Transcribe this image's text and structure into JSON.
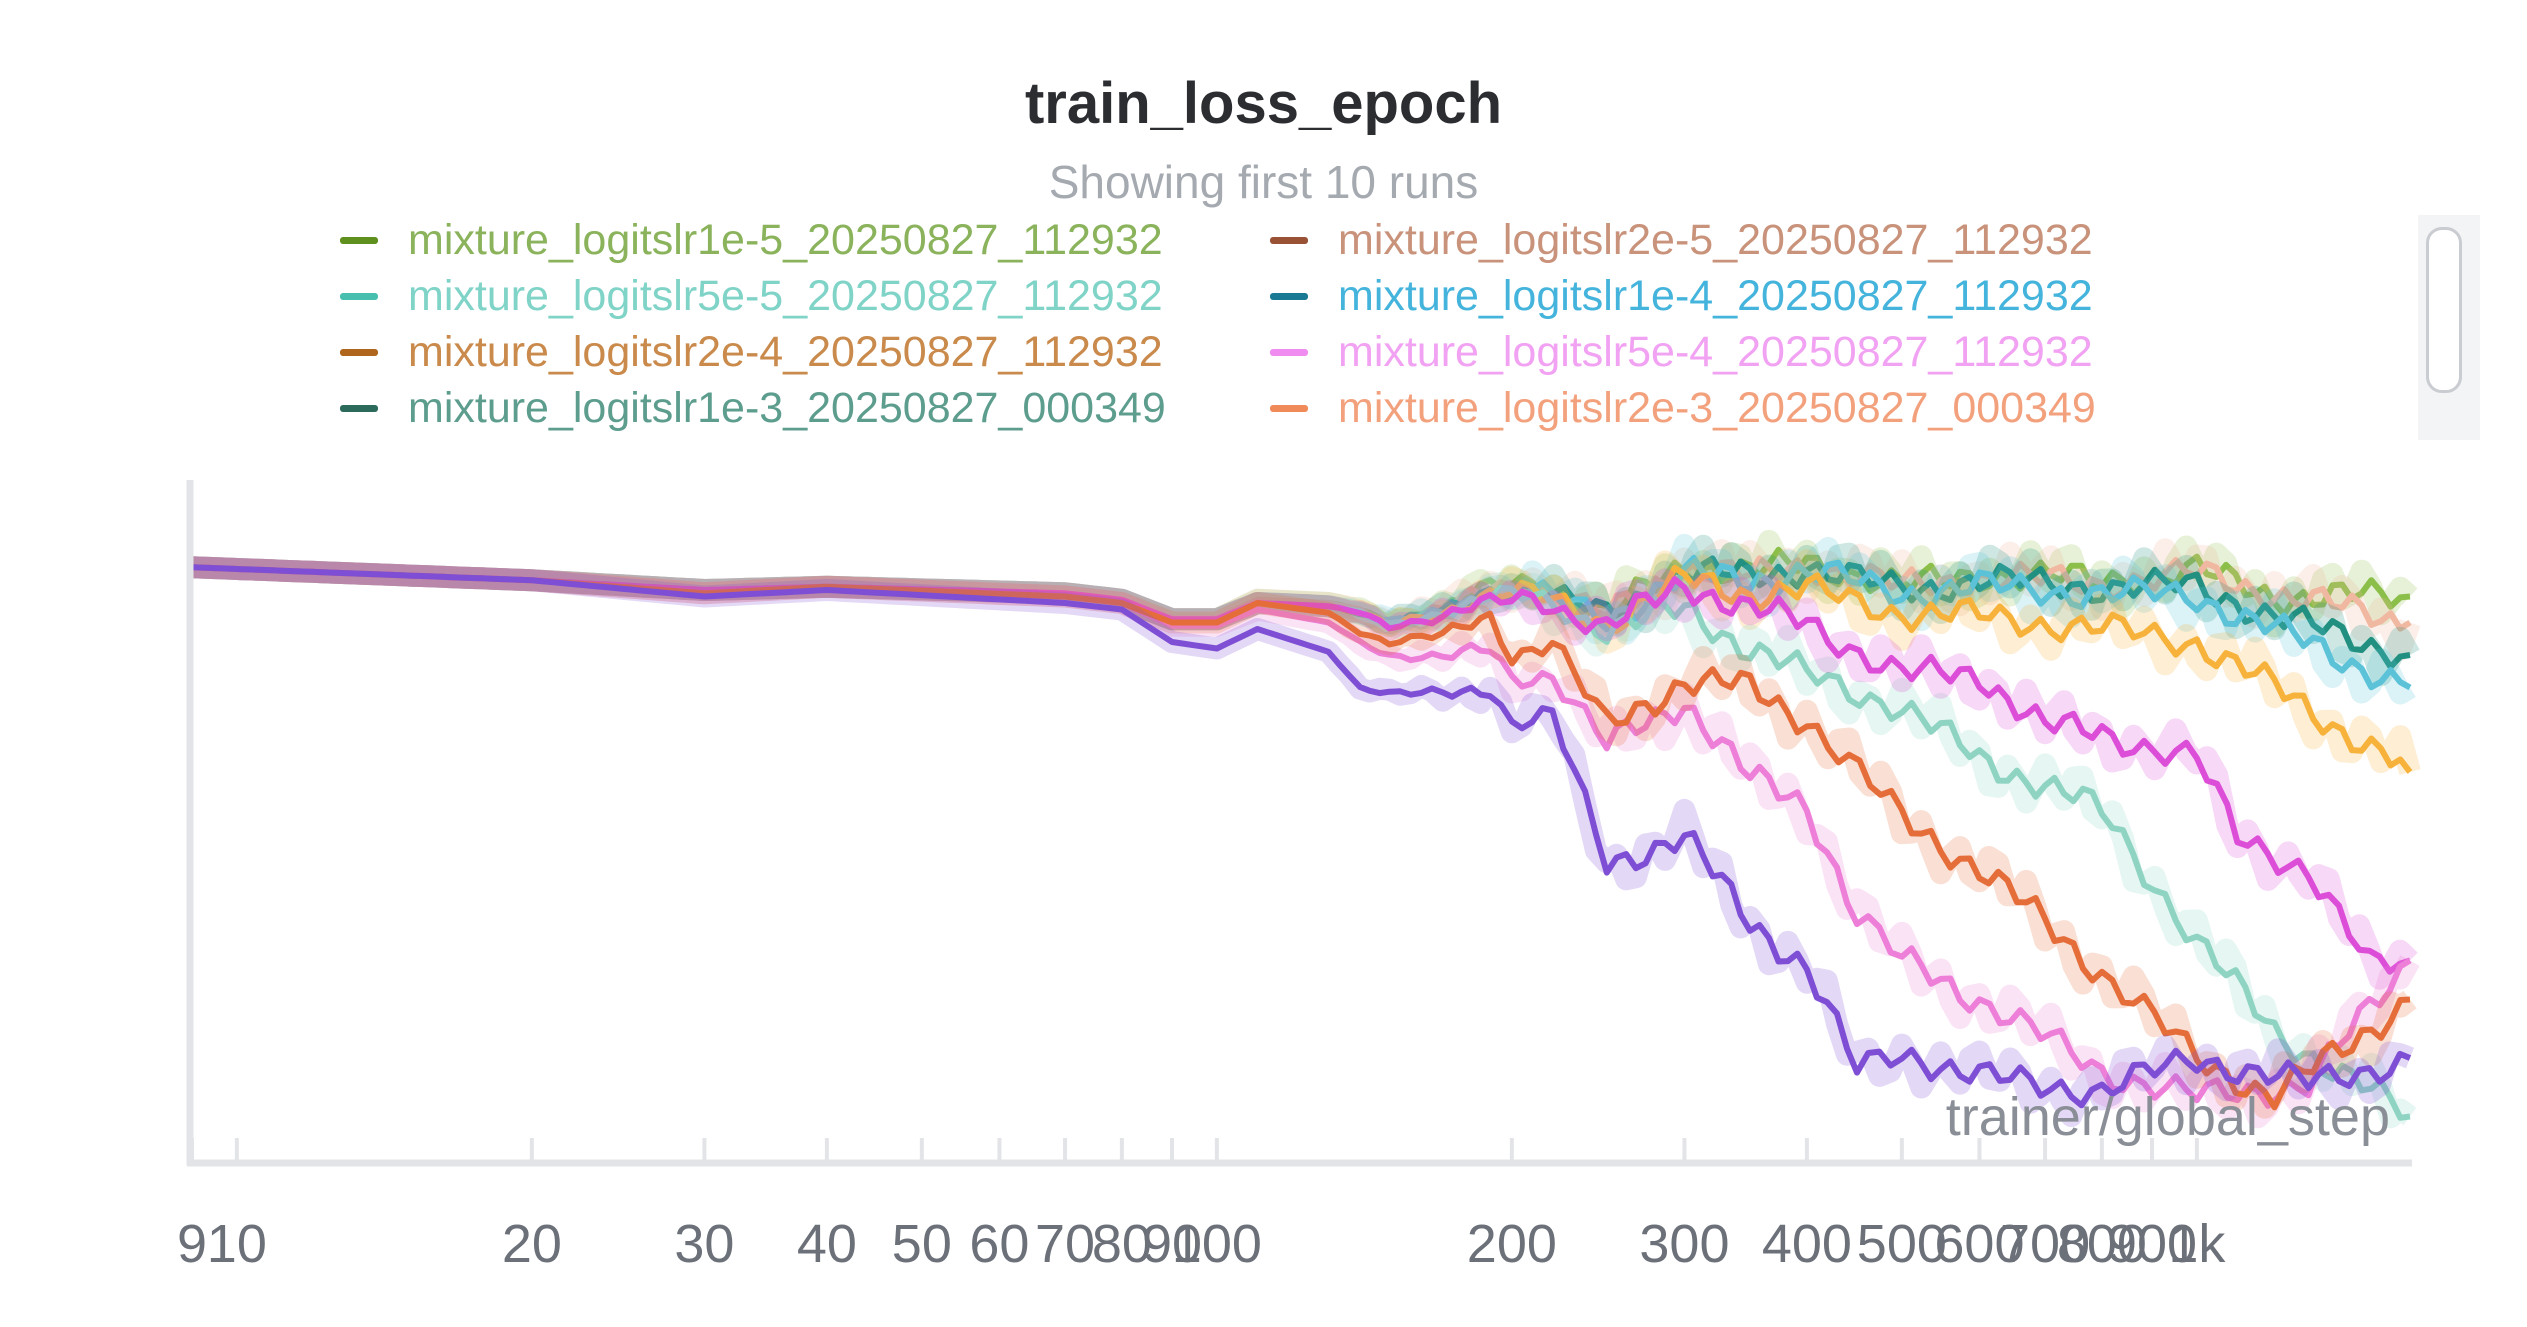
{
  "chart_data": {
    "type": "line",
    "title": "train_loss_epoch",
    "subtitle": "Showing first 10 runs",
    "xlabel": "trainer/global_step",
    "ylabel": "",
    "x_scale": "log",
    "xlim": [
      9,
      1650
    ],
    "ylim": [
      0,
      1
    ],
    "x_tick_labels": [
      "9",
      "10",
      "20",
      "30",
      "40",
      "50",
      "60",
      "70",
      "80",
      "90",
      "100",
      "200",
      "300",
      "400",
      "500",
      "600",
      "700",
      "800",
      "900",
      "1k"
    ],
    "x_tick_values": [
      9,
      10,
      20,
      30,
      40,
      50,
      60,
      70,
      80,
      90,
      100,
      200,
      300,
      400,
      500,
      600,
      700,
      800,
      900,
      1000
    ],
    "legend": [
      {
        "name": "mixture_logitslr1e-5_20250827_112932",
        "color": "#5f8f1c",
        "text_color": "#8ab35c"
      },
      {
        "name": "mixture_logitslr2e-5_20250827_112932",
        "color": "#9a5236",
        "text_color": "#c9927a"
      },
      {
        "name": "mixture_logitslr5e-5_20250827_112932",
        "color": "#47bfae",
        "text_color": "#7fd3c7"
      },
      {
        "name": "mixture_logitslr1e-4_20250827_112932",
        "color": "#1a7a94",
        "text_color": "#45b4dc"
      },
      {
        "name": "mixture_logitslr2e-4_20250827_112932",
        "color": "#b0651c",
        "text_color": "#c98a4c"
      },
      {
        "name": "mixture_logitslr5e-4_20250827_112932",
        "color": "#f08cf0",
        "text_color": "#f2a2f2"
      },
      {
        "name": "mixture_logitslr1e-3_20250827_000349",
        "color": "#2c6a5c",
        "text_color": "#5d9d8e"
      },
      {
        "name": "mixture_logitslr2e-3_20250827_000349",
        "color": "#f08a58",
        "text_color": "#f3a17d"
      }
    ],
    "series": [
      {
        "name": "mixture_logitslr1e-5_20250827_112932",
        "color": "#8bbf4a",
        "points": [
          [
            9,
            0.915
          ],
          [
            20,
            0.895
          ],
          [
            30,
            0.88
          ],
          [
            40,
            0.885
          ],
          [
            70,
            0.875
          ],
          [
            80,
            0.865
          ],
          [
            90,
            0.835
          ],
          [
            100,
            0.835
          ],
          [
            110,
            0.865
          ],
          [
            130,
            0.86
          ],
          [
            140,
            0.85
          ],
          [
            150,
            0.83
          ],
          [
            170,
            0.85
          ],
          [
            190,
            0.885
          ],
          [
            210,
            0.895
          ],
          [
            250,
            0.84
          ],
          [
            300,
            0.92
          ],
          [
            350,
            0.905
          ],
          [
            400,
            0.925
          ],
          [
            500,
            0.885
          ],
          [
            600,
            0.905
          ],
          [
            800,
            0.895
          ],
          [
            1000,
            0.91
          ],
          [
            1200,
            0.87
          ],
          [
            1650,
            0.87
          ]
        ]
      },
      {
        "name": "mixture_logitslr2e-5_20250827_112932",
        "color": "#f0b8a0",
        "points": [
          [
            9,
            0.915
          ],
          [
            20,
            0.895
          ],
          [
            30,
            0.88
          ],
          [
            40,
            0.885
          ],
          [
            70,
            0.875
          ],
          [
            80,
            0.865
          ],
          [
            90,
            0.835
          ],
          [
            100,
            0.835
          ],
          [
            110,
            0.865
          ],
          [
            130,
            0.86
          ],
          [
            140,
            0.85
          ],
          [
            150,
            0.83
          ],
          [
            170,
            0.85
          ],
          [
            190,
            0.885
          ],
          [
            210,
            0.89
          ],
          [
            250,
            0.84
          ],
          [
            300,
            0.915
          ],
          [
            350,
            0.9
          ],
          [
            400,
            0.92
          ],
          [
            500,
            0.885
          ],
          [
            600,
            0.9
          ],
          [
            800,
            0.89
          ],
          [
            1000,
            0.905
          ],
          [
            1200,
            0.875
          ],
          [
            1650,
            0.83
          ]
        ]
      },
      {
        "name": "mixture_logitslr1e-3_20250827_000349",
        "color": "#219080",
        "points": [
          [
            9,
            0.915
          ],
          [
            20,
            0.895
          ],
          [
            30,
            0.88
          ],
          [
            40,
            0.885
          ],
          [
            70,
            0.875
          ],
          [
            80,
            0.865
          ],
          [
            90,
            0.835
          ],
          [
            100,
            0.835
          ],
          [
            110,
            0.86
          ],
          [
            130,
            0.855
          ],
          [
            140,
            0.845
          ],
          [
            150,
            0.83
          ],
          [
            170,
            0.845
          ],
          [
            190,
            0.88
          ],
          [
            210,
            0.885
          ],
          [
            250,
            0.84
          ],
          [
            300,
            0.91
          ],
          [
            350,
            0.9
          ],
          [
            400,
            0.915
          ],
          [
            500,
            0.88
          ],
          [
            600,
            0.895
          ],
          [
            800,
            0.885
          ],
          [
            1000,
            0.885
          ],
          [
            1200,
            0.84
          ],
          [
            1650,
            0.78
          ]
        ]
      },
      {
        "name": "mixture_logitslr1e-4_20250827_112932",
        "color": "#5bc2d8",
        "points": [
          [
            9,
            0.915
          ],
          [
            20,
            0.895
          ],
          [
            30,
            0.88
          ],
          [
            40,
            0.885
          ],
          [
            70,
            0.875
          ],
          [
            80,
            0.865
          ],
          [
            90,
            0.835
          ],
          [
            100,
            0.835
          ],
          [
            110,
            0.86
          ],
          [
            130,
            0.855
          ],
          [
            140,
            0.845
          ],
          [
            150,
            0.83
          ],
          [
            170,
            0.845
          ],
          [
            190,
            0.88
          ],
          [
            210,
            0.88
          ],
          [
            250,
            0.835
          ],
          [
            300,
            0.905
          ],
          [
            350,
            0.895
          ],
          [
            400,
            0.91
          ],
          [
            500,
            0.875
          ],
          [
            600,
            0.885
          ],
          [
            800,
            0.875
          ],
          [
            1000,
            0.87
          ],
          [
            1200,
            0.82
          ],
          [
            1650,
            0.73
          ]
        ]
      },
      {
        "name": "mixture_logitslr2e-4_20250827_112932",
        "color": "#f7b23b",
        "points": [
          [
            9,
            0.915
          ],
          [
            20,
            0.895
          ],
          [
            30,
            0.88
          ],
          [
            40,
            0.885
          ],
          [
            70,
            0.875
          ],
          [
            80,
            0.865
          ],
          [
            90,
            0.835
          ],
          [
            100,
            0.835
          ],
          [
            110,
            0.86
          ],
          [
            130,
            0.855
          ],
          [
            140,
            0.845
          ],
          [
            150,
            0.825
          ],
          [
            170,
            0.845
          ],
          [
            190,
            0.875
          ],
          [
            210,
            0.875
          ],
          [
            250,
            0.83
          ],
          [
            300,
            0.895
          ],
          [
            350,
            0.875
          ],
          [
            400,
            0.88
          ],
          [
            500,
            0.845
          ],
          [
            600,
            0.84
          ],
          [
            800,
            0.82
          ],
          [
            1000,
            0.8
          ],
          [
            1200,
            0.73
          ],
          [
            1650,
            0.6
          ]
        ]
      },
      {
        "name": "mixture_logitslr5e-5_20250827_112932",
        "color": "#8fd4c2",
        "points": [
          [
            9,
            0.915
          ],
          [
            20,
            0.895
          ],
          [
            30,
            0.88
          ],
          [
            40,
            0.885
          ],
          [
            70,
            0.875
          ],
          [
            80,
            0.865
          ],
          [
            90,
            0.835
          ],
          [
            100,
            0.835
          ],
          [
            110,
            0.86
          ],
          [
            130,
            0.855
          ],
          [
            140,
            0.845
          ],
          [
            150,
            0.825
          ],
          [
            170,
            0.845
          ],
          [
            190,
            0.87
          ],
          [
            210,
            0.87
          ],
          [
            250,
            0.82
          ],
          [
            300,
            0.85
          ],
          [
            350,
            0.79
          ],
          [
            400,
            0.75
          ],
          [
            500,
            0.7
          ],
          [
            600,
            0.62
          ],
          [
            700,
            0.58
          ],
          [
            800,
            0.54
          ],
          [
            1000,
            0.34
          ],
          [
            1200,
            0.2
          ],
          [
            1650,
            0.07
          ]
        ]
      },
      {
        "name": "mixture_logitslr5e-4_20250827_112932",
        "color": "#dc4ed8",
        "points": [
          [
            9,
            0.915
          ],
          [
            20,
            0.895
          ],
          [
            30,
            0.88
          ],
          [
            40,
            0.885
          ],
          [
            70,
            0.875
          ],
          [
            80,
            0.865
          ],
          [
            90,
            0.835
          ],
          [
            100,
            0.835
          ],
          [
            110,
            0.86
          ],
          [
            130,
            0.855
          ],
          [
            140,
            0.845
          ],
          [
            150,
            0.825
          ],
          [
            170,
            0.84
          ],
          [
            190,
            0.86
          ],
          [
            210,
            0.87
          ],
          [
            250,
            0.82
          ],
          [
            300,
            0.89
          ],
          [
            350,
            0.85
          ],
          [
            400,
            0.83
          ],
          [
            500,
            0.75
          ],
          [
            600,
            0.75
          ],
          [
            700,
            0.67
          ],
          [
            800,
            0.66
          ],
          [
            1000,
            0.62
          ],
          [
            1100,
            0.5
          ],
          [
            1300,
            0.45
          ],
          [
            1500,
            0.3
          ],
          [
            1650,
            0.31
          ]
        ]
      },
      {
        "name": "mixture_logitslr2e-3_20250827_000349",
        "color": "#ed7fd8",
        "points": [
          [
            9,
            0.915
          ],
          [
            20,
            0.895
          ],
          [
            30,
            0.875
          ],
          [
            40,
            0.885
          ],
          [
            70,
            0.87
          ],
          [
            80,
            0.86
          ],
          [
            90,
            0.825
          ],
          [
            100,
            0.825
          ],
          [
            110,
            0.85
          ],
          [
            130,
            0.83
          ],
          [
            140,
            0.8
          ],
          [
            150,
            0.78
          ],
          [
            170,
            0.775
          ],
          [
            190,
            0.79
          ],
          [
            200,
            0.745
          ],
          [
            220,
            0.75
          ],
          [
            250,
            0.64
          ],
          [
            300,
            0.71
          ],
          [
            350,
            0.59
          ],
          [
            400,
            0.55
          ],
          [
            450,
            0.38
          ],
          [
            500,
            0.31
          ],
          [
            600,
            0.25
          ],
          [
            800,
            0.14
          ],
          [
            1000,
            0.1
          ],
          [
            1300,
            0.12
          ],
          [
            1650,
            0.31
          ]
        ]
      },
      {
        "name": "mixture_logitslr2e-4_20250827_112932 (orange)",
        "color": "#e56d3a",
        "points": [
          [
            9,
            0.915
          ],
          [
            20,
            0.895
          ],
          [
            30,
            0.875
          ],
          [
            40,
            0.885
          ],
          [
            70,
            0.87
          ],
          [
            80,
            0.86
          ],
          [
            90,
            0.83
          ],
          [
            100,
            0.83
          ],
          [
            110,
            0.86
          ],
          [
            130,
            0.845
          ],
          [
            140,
            0.815
          ],
          [
            150,
            0.8
          ],
          [
            170,
            0.81
          ],
          [
            190,
            0.84
          ],
          [
            200,
            0.78
          ],
          [
            220,
            0.8
          ],
          [
            250,
            0.67
          ],
          [
            300,
            0.74
          ],
          [
            350,
            0.73
          ],
          [
            400,
            0.68
          ],
          [
            500,
            0.53
          ],
          [
            600,
            0.45
          ],
          [
            700,
            0.37
          ],
          [
            800,
            0.29
          ],
          [
            1000,
            0.16
          ],
          [
            1200,
            0.1
          ],
          [
            1650,
            0.25
          ]
        ]
      },
      {
        "name": "mixture_logitslr1e-3_20250827_000349 (purple)",
        "color": "#7e4fd4",
        "points": [
          [
            9,
            0.915
          ],
          [
            20,
            0.895
          ],
          [
            30,
            0.87
          ],
          [
            40,
            0.88
          ],
          [
            70,
            0.86
          ],
          [
            80,
            0.85
          ],
          [
            90,
            0.8
          ],
          [
            100,
            0.79
          ],
          [
            110,
            0.82
          ],
          [
            130,
            0.785
          ],
          [
            140,
            0.73
          ],
          [
            150,
            0.72
          ],
          [
            170,
            0.72
          ],
          [
            190,
            0.73
          ],
          [
            200,
            0.675
          ],
          [
            220,
            0.685
          ],
          [
            250,
            0.46
          ],
          [
            300,
            0.5
          ],
          [
            350,
            0.37
          ],
          [
            400,
            0.3
          ],
          [
            450,
            0.14
          ],
          [
            500,
            0.17
          ],
          [
            600,
            0.13
          ],
          [
            800,
            0.11
          ],
          [
            1000,
            0.16
          ],
          [
            1300,
            0.12
          ],
          [
            1650,
            0.16
          ]
        ]
      }
    ]
  }
}
